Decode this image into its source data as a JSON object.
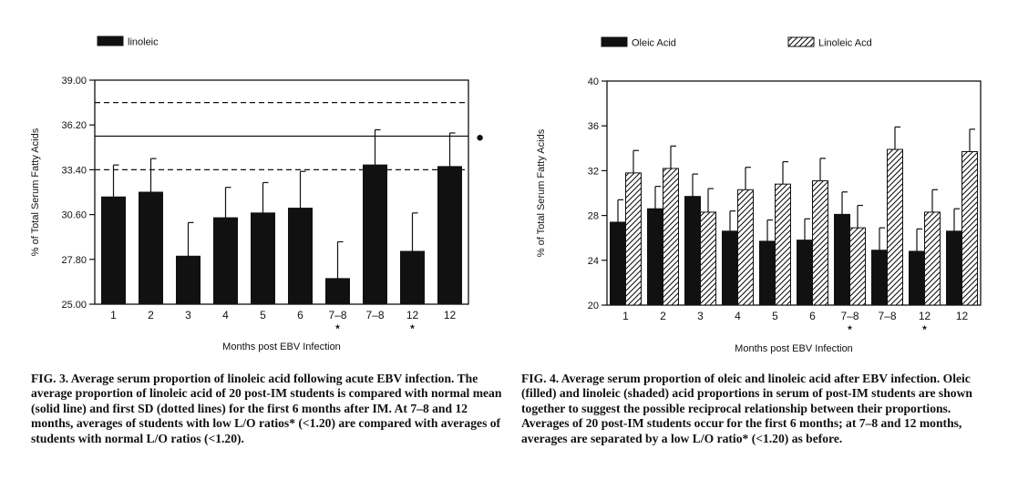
{
  "chart_data": [
    {
      "id": "fig3",
      "type": "bar",
      "legend": [
        {
          "label": "linoleic",
          "fill": "solid"
        }
      ],
      "categories": [
        "1",
        "2",
        "3",
        "4",
        "5",
        "6",
        "7–8",
        "7–8",
        "12",
        "12"
      ],
      "category_marks": [
        "",
        "",
        "",
        "",
        "",
        "",
        "*",
        "",
        "*",
        ""
      ],
      "series": [
        {
          "name": "linoleic",
          "fill": "solid",
          "values": [
            31.7,
            32.0,
            28.0,
            30.4,
            30.7,
            31.0,
            26.6,
            33.7,
            28.3,
            33.6
          ],
          "errors": [
            2.0,
            2.1,
            2.1,
            1.9,
            1.9,
            2.3,
            2.3,
            2.2,
            2.4,
            2.1
          ]
        }
      ],
      "reference_lines": [
        {
          "value": 37.6,
          "style": "dashed"
        },
        {
          "value": 35.5,
          "style": "solid"
        },
        {
          "value": 33.4,
          "style": "dashed"
        }
      ],
      "side_marker": "●",
      "yticks": [
        "39.00",
        "36.20",
        "33.40",
        "30.60",
        "27.80",
        "25.00"
      ],
      "ylim": [
        25.0,
        39.0
      ],
      "ylabel": "% of Total Serum Fatty Acids",
      "xlabel": "Months post EBV Infection",
      "grid": false,
      "legend_position": "top-left"
    },
    {
      "id": "fig4",
      "type": "bar",
      "legend": [
        {
          "label": "Oleic Acid",
          "fill": "solid"
        },
        {
          "label": "Linoleic Acd",
          "fill": "hatched"
        }
      ],
      "categories": [
        "1",
        "2",
        "3",
        "4",
        "5",
        "6",
        "7–8",
        "7–8",
        "12",
        "12"
      ],
      "category_marks": [
        "",
        "",
        "",
        "",
        "",
        "",
        "*",
        "",
        "*",
        ""
      ],
      "series": [
        {
          "name": "Oleic Acid",
          "fill": "solid",
          "values": [
            27.4,
            28.6,
            29.7,
            26.6,
            25.7,
            25.8,
            28.1,
            24.9,
            24.8,
            26.6
          ],
          "errors": [
            2.0,
            2.0,
            2.0,
            1.8,
            1.9,
            1.9,
            2.0,
            2.0,
            2.0,
            2.0
          ]
        },
        {
          "name": "Linoleic Acd",
          "fill": "hatched",
          "values": [
            31.8,
            32.2,
            28.3,
            30.3,
            30.8,
            31.1,
            26.9,
            33.9,
            28.3,
            33.7
          ],
          "errors": [
            2.0,
            2.0,
            2.1,
            2.0,
            2.0,
            2.0,
            2.0,
            2.0,
            2.0,
            2.0
          ]
        }
      ],
      "yticks": [
        "40",
        "36",
        "32",
        "28",
        "24",
        "20"
      ],
      "ylim": [
        20,
        40
      ],
      "ylabel": "% of Total Serum Fatty Acids",
      "xlabel": "Months post EBV Infection",
      "grid": false,
      "legend_position": "top"
    }
  ],
  "captions": {
    "fig3": "FIG. 3. Average serum proportion of linoleic acid following acute EBV infection. The average proportion of linoleic acid of 20 post-IM students is compared with normal mean (solid line) and first SD (dotted lines) for the first 6 months after IM. At 7–8 and 12 months, averages of students with low L/O ratios* (<1.20) are compared with averages of students with normal L/O ratios (<1.20).",
    "fig4": "FIG. 4. Average serum proportion of oleic and linoleic acid after EBV infection. Oleic (filled) and linoleic (shaded) acid proportions in serum of post-IM students are shown together to suggest the possible reciprocal relationship between their proportions. Averages of 20 post-IM students occur for the first 6 months; at 7–8 and 12 months, averages are separated by a low L/O ratio* (<1.20) as before."
  }
}
